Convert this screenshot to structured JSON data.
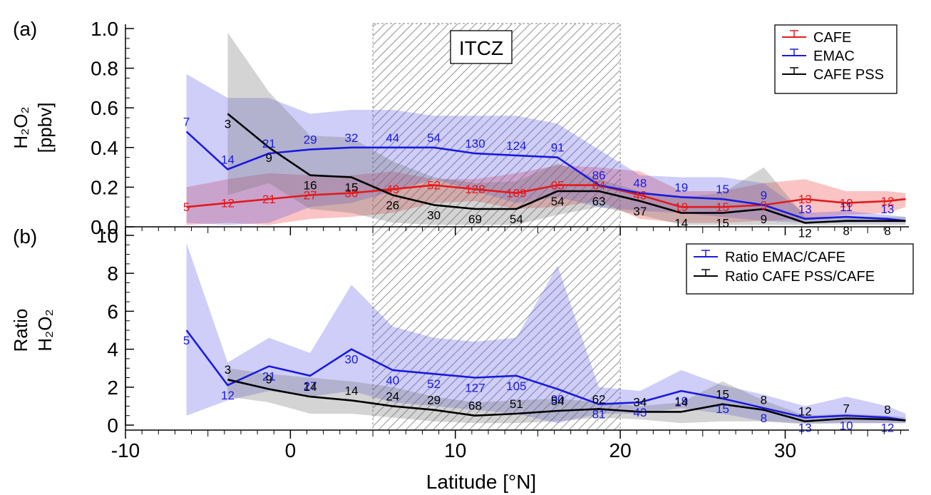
{
  "x_axis_label": "Latitude [°N]",
  "x_ticks": [
    -10,
    0,
    10,
    20,
    30
  ],
  "region": {
    "label": "ITCZ",
    "x_from": 5,
    "x_to": 20
  },
  "colors": {
    "cafe": "#e31a1c",
    "emac": "#1a1adf",
    "pss": "#000000",
    "hatch": "#9a9a9a"
  },
  "chart_data": [
    {
      "type": "line",
      "panel_label": "(a)",
      "ylabel_line1": "H₂O₂",
      "ylabel_line2": "[ppbv]",
      "ylim": [
        0,
        1.0
      ],
      "xlim": [
        -10,
        37.5
      ],
      "y_ticks": [
        "0.0",
        "0.2",
        "0.4",
        "0.6",
        "0.8",
        "1.0"
      ],
      "legend_position": "top-right",
      "series": [
        {
          "name": "CAFE",
          "key": "cafe",
          "x": [
            -6.3,
            -3.8,
            -1.3,
            1.2,
            3.7,
            6.2,
            8.7,
            11.2,
            13.7,
            16.2,
            18.7,
            21.2,
            23.7,
            26.2,
            28.7,
            31.2,
            33.7,
            36.2,
            37.3
          ],
          "y": [
            0.1,
            0.12,
            0.14,
            0.16,
            0.17,
            0.19,
            0.21,
            0.19,
            0.17,
            0.21,
            0.21,
            0.16,
            0.1,
            0.1,
            0.11,
            0.14,
            0.12,
            0.13,
            0.14
          ],
          "upper": [
            0.2,
            0.24,
            0.27,
            0.26,
            0.26,
            0.28,
            0.24,
            0.24,
            0.27,
            0.31,
            0.3,
            0.28,
            0.18,
            0.18,
            0.22,
            0.24,
            0.18,
            0.18,
            0.17
          ],
          "lower": [
            0.01,
            0.02,
            0.01,
            0.04,
            0.05,
            0.07,
            0.12,
            0.13,
            0.09,
            0.1,
            0.13,
            0.04,
            0.02,
            0.02,
            0.03,
            0.04,
            0.06,
            0.07,
            0.1
          ],
          "labels": [
            {
              "x": -6.3,
              "text": "5"
            },
            {
              "x": -3.8,
              "text": "12"
            },
            {
              "x": -1.3,
              "text": "21"
            },
            {
              "x": 1.2,
              "text": "27"
            },
            {
              "x": 3.7,
              "text": "30"
            },
            {
              "x": 6.2,
              "text": "49"
            },
            {
              "x": 8.7,
              "text": "52"
            },
            {
              "x": 11.2,
              "text": "128"
            },
            {
              "x": 13.7,
              "text": "109"
            },
            {
              "x": 16.2,
              "text": "95"
            },
            {
              "x": 18.7,
              "text": "64"
            },
            {
              "x": 21.2,
              "text": "43"
            },
            {
              "x": 23.7,
              "text": "19"
            },
            {
              "x": 26.2,
              "text": "15"
            },
            {
              "x": 28.7,
              "text": "9"
            },
            {
              "x": 31.2,
              "text": "13"
            },
            {
              "x": 33.7,
              "text": "10"
            },
            {
              "x": 36.2,
              "text": "12"
            }
          ]
        },
        {
          "name": "EMAC",
          "key": "emac",
          "x": [
            -6.3,
            -3.8,
            -1.3,
            1.2,
            3.7,
            6.2,
            8.7,
            11.2,
            13.7,
            16.2,
            18.7,
            21.2,
            23.7,
            26.2,
            28.7,
            31.2,
            33.7,
            36.2,
            37.3
          ],
          "y": [
            0.48,
            0.29,
            0.37,
            0.39,
            0.4,
            0.4,
            0.4,
            0.37,
            0.36,
            0.35,
            0.21,
            0.17,
            0.15,
            0.14,
            0.11,
            0.04,
            0.05,
            0.04,
            0.03
          ],
          "upper": [
            0.77,
            0.65,
            0.65,
            0.57,
            0.59,
            0.59,
            0.56,
            0.56,
            0.56,
            0.52,
            0.39,
            0.26,
            0.25,
            0.25,
            0.22,
            0.07,
            0.08,
            0.06,
            0.05
          ],
          "lower": [
            0.02,
            0.01,
            0.02,
            0.1,
            0.12,
            0.18,
            0.24,
            0.18,
            0.12,
            0.15,
            0.1,
            0.08,
            0.07,
            0.05,
            0.03,
            0.02,
            0.02,
            0.02,
            0.02
          ],
          "labels": [
            {
              "x": -6.3,
              "text": "7"
            },
            {
              "x": -3.8,
              "text": "14"
            },
            {
              "x": -1.3,
              "text": "21"
            },
            {
              "x": 1.2,
              "text": "29"
            },
            {
              "x": 3.7,
              "text": "32"
            },
            {
              "x": 6.2,
              "text": "44"
            },
            {
              "x": 8.7,
              "text": "54"
            },
            {
              "x": 11.2,
              "text": "130"
            },
            {
              "x": 13.7,
              "text": "124"
            },
            {
              "x": 16.2,
              "text": "91"
            },
            {
              "x": 18.7,
              "text": "86"
            },
            {
              "x": 21.2,
              "text": "48"
            },
            {
              "x": 23.7,
              "text": "19"
            },
            {
              "x": 26.2,
              "text": "15"
            },
            {
              "x": 28.7,
              "text": "9"
            },
            {
              "x": 31.2,
              "text": "13"
            },
            {
              "x": 33.7,
              "text": "11"
            },
            {
              "x": 36.2,
              "text": "13"
            }
          ]
        },
        {
          "name": "CAFE PSS",
          "key": "pss",
          "x": [
            -3.8,
            -1.3,
            1.2,
            3.7,
            6.2,
            8.7,
            11.2,
            13.7,
            16.2,
            18.7,
            21.2,
            23.7,
            26.2,
            28.7,
            31.2,
            33.7,
            36.2,
            37.3
          ],
          "y": [
            0.57,
            0.4,
            0.26,
            0.25,
            0.16,
            0.11,
            0.09,
            0.09,
            0.18,
            0.18,
            0.13,
            0.07,
            0.07,
            0.09,
            0.02,
            0.03,
            0.03,
            0.03
          ],
          "upper": [
            0.98,
            0.68,
            0.46,
            0.45,
            0.33,
            0.25,
            0.22,
            0.23,
            0.32,
            0.24,
            0.18,
            0.15,
            0.17,
            0.3,
            0.05,
            0.05,
            0.05,
            0.05
          ],
          "lower": [
            0.16,
            0.22,
            0.09,
            0.07,
            0.02,
            0.01,
            0.01,
            0.01,
            0.06,
            0.1,
            0.06,
            0.01,
            0.01,
            0.01,
            0.01,
            0.01,
            0.01,
            0.01
          ],
          "labels": [
            {
              "x": -3.8,
              "text": "3"
            },
            {
              "x": -1.3,
              "text": "9"
            },
            {
              "x": 1.2,
              "text": "16"
            },
            {
              "x": 3.7,
              "text": "15"
            },
            {
              "x": 6.2,
              "text": "26"
            },
            {
              "x": 8.7,
              "text": "30"
            },
            {
              "x": 11.2,
              "text": "69"
            },
            {
              "x": 13.7,
              "text": "54"
            },
            {
              "x": 16.2,
              "text": "54"
            },
            {
              "x": 18.7,
              "text": "63"
            },
            {
              "x": 21.2,
              "text": "37"
            },
            {
              "x": 23.7,
              "text": "14"
            },
            {
              "x": 26.2,
              "text": "15"
            },
            {
              "x": 28.7,
              "text": "9"
            },
            {
              "x": 31.2,
              "text": "12"
            },
            {
              "x": 33.7,
              "text": "8"
            },
            {
              "x": 36.2,
              "text": "8"
            }
          ]
        }
      ]
    },
    {
      "type": "line",
      "panel_label": "(b)",
      "ylabel_line1": "Ratio",
      "ylabel_line2": "H₂O₂",
      "ylim": [
        0,
        10
      ],
      "xlim": [
        -10,
        37.5
      ],
      "y_ticks": [
        "0",
        "2",
        "4",
        "6",
        "8",
        "10"
      ],
      "legend_position": "top-right",
      "series": [
        {
          "name": "Ratio EMAC/CAFE",
          "key": "emac",
          "x": [
            -6.3,
            -3.8,
            -1.3,
            1.2,
            3.7,
            6.2,
            8.7,
            11.2,
            13.7,
            16.2,
            18.7,
            21.2,
            23.7,
            26.2,
            28.7,
            31.2,
            33.7,
            36.2,
            37.3
          ],
          "y": [
            5.0,
            2.1,
            3.1,
            2.6,
            4.0,
            2.9,
            2.7,
            2.5,
            2.6,
            1.9,
            1.1,
            1.2,
            1.8,
            1.4,
            0.9,
            0.4,
            0.5,
            0.4,
            0.25
          ],
          "upper": [
            9.6,
            3.3,
            4.6,
            3.8,
            7.4,
            5.2,
            4.6,
            4.4,
            4.6,
            8.4,
            2.0,
            1.8,
            2.9,
            2.1,
            1.6,
            1.0,
            1.5,
            1.0,
            0.6
          ],
          "lower": [
            0.5,
            1.3,
            1.8,
            1.5,
            1.8,
            1.2,
            1.0,
            0.8,
            0.6,
            0.1,
            0.6,
            0.6,
            0.9,
            0.6,
            0.2,
            0.1,
            0.1,
            0.1,
            0.1
          ],
          "labels": [
            {
              "x": -6.3,
              "text": "5"
            },
            {
              "x": -3.8,
              "text": "12"
            },
            {
              "x": -1.3,
              "text": "21"
            },
            {
              "x": 1.2,
              "text": "27"
            },
            {
              "x": 3.7,
              "text": "30"
            },
            {
              "x": 6.2,
              "text": "40"
            },
            {
              "x": 8.7,
              "text": "52"
            },
            {
              "x": 11.2,
              "text": "127"
            },
            {
              "x": 13.7,
              "text": "105"
            },
            {
              "x": 16.2,
              "text": "90"
            },
            {
              "x": 18.7,
              "text": "81"
            },
            {
              "x": 21.2,
              "text": "43"
            },
            {
              "x": 23.7,
              "text": "19"
            },
            {
              "x": 26.2,
              "text": "15"
            },
            {
              "x": 28.7,
              "text": "8"
            },
            {
              "x": 31.2,
              "text": "13"
            },
            {
              "x": 33.7,
              "text": "10"
            },
            {
              "x": 36.2,
              "text": "12"
            }
          ]
        },
        {
          "name": "Ratio CAFE PSS/CAFE",
          "key": "pss",
          "x": [
            -3.8,
            -1.3,
            1.2,
            3.7,
            6.2,
            8.7,
            11.2,
            13.7,
            16.2,
            18.7,
            21.2,
            23.7,
            26.2,
            28.7,
            31.2,
            33.7,
            36.2,
            37.3
          ],
          "y": [
            2.4,
            1.9,
            1.5,
            1.3,
            1.0,
            0.8,
            0.5,
            0.6,
            0.75,
            0.85,
            0.7,
            0.7,
            1.1,
            0.8,
            0.2,
            0.35,
            0.3,
            0.25
          ],
          "upper": [
            3.0,
            2.7,
            2.5,
            2.3,
            2.0,
            1.5,
            1.2,
            1.3,
            1.4,
            1.2,
            1.0,
            1.2,
            2.3,
            1.3,
            0.5,
            0.6,
            0.5,
            0.4
          ],
          "lower": [
            1.5,
            1.2,
            0.6,
            0.6,
            0.4,
            0.2,
            0.1,
            0.1,
            0.2,
            0.4,
            0.3,
            0.1,
            0.2,
            0.2,
            0.05,
            0.1,
            0.1,
            0.1
          ],
          "labels": [
            {
              "x": -3.8,
              "text": "3"
            },
            {
              "x": -1.3,
              "text": "9"
            },
            {
              "x": 1.2,
              "text": "14"
            },
            {
              "x": 3.7,
              "text": "14"
            },
            {
              "x": 6.2,
              "text": "24"
            },
            {
              "x": 8.7,
              "text": "29"
            },
            {
              "x": 11.2,
              "text": "68"
            },
            {
              "x": 13.7,
              "text": "51"
            },
            {
              "x": 16.2,
              "text": "54"
            },
            {
              "x": 18.7,
              "text": "62"
            },
            {
              "x": 21.2,
              "text": "34"
            },
            {
              "x": 23.7,
              "text": "14"
            },
            {
              "x": 26.2,
              "text": "15"
            },
            {
              "x": 28.7,
              "text": "8"
            },
            {
              "x": 31.2,
              "text": "12"
            },
            {
              "x": 33.7,
              "text": "7"
            },
            {
              "x": 36.2,
              "text": "8"
            }
          ]
        }
      ]
    }
  ]
}
